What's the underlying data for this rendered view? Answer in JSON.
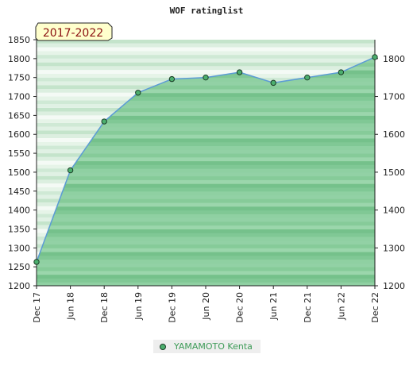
{
  "chart_data": {
    "type": "area",
    "title": "WOF ratinglist",
    "badge": "2017-2022",
    "categories": [
      "Dec 17",
      "Jun 18",
      "Dec 18",
      "Jun 19",
      "Dec 19",
      "Jun 20",
      "Dec 20",
      "Jun 21",
      "Dec 21",
      "Jun 22",
      "Dec 22"
    ],
    "series": [
      {
        "name": "YAMAMOTO Kenta",
        "values": [
          1263,
          1505,
          1634,
          1710,
          1746,
          1750,
          1764,
          1736,
          1750,
          1764,
          1804
        ]
      }
    ],
    "left_ylim": [
      1200,
      1850
    ],
    "left_ticks": [
      1200,
      1250,
      1300,
      1350,
      1400,
      1450,
      1500,
      1550,
      1600,
      1650,
      1700,
      1750,
      1800,
      1850
    ],
    "right_ylim": [
      1200,
      1850
    ],
    "right_ticks": [
      1200,
      1300,
      1400,
      1500,
      1600,
      1700,
      1800
    ],
    "grid": "horizontal bands",
    "legend_position": "bottom-center",
    "colors": {
      "line": "#5b9bd5",
      "marker": "#4caf6e",
      "fill": "#7fc894",
      "badge_bg": "#ffffcc"
    }
  }
}
